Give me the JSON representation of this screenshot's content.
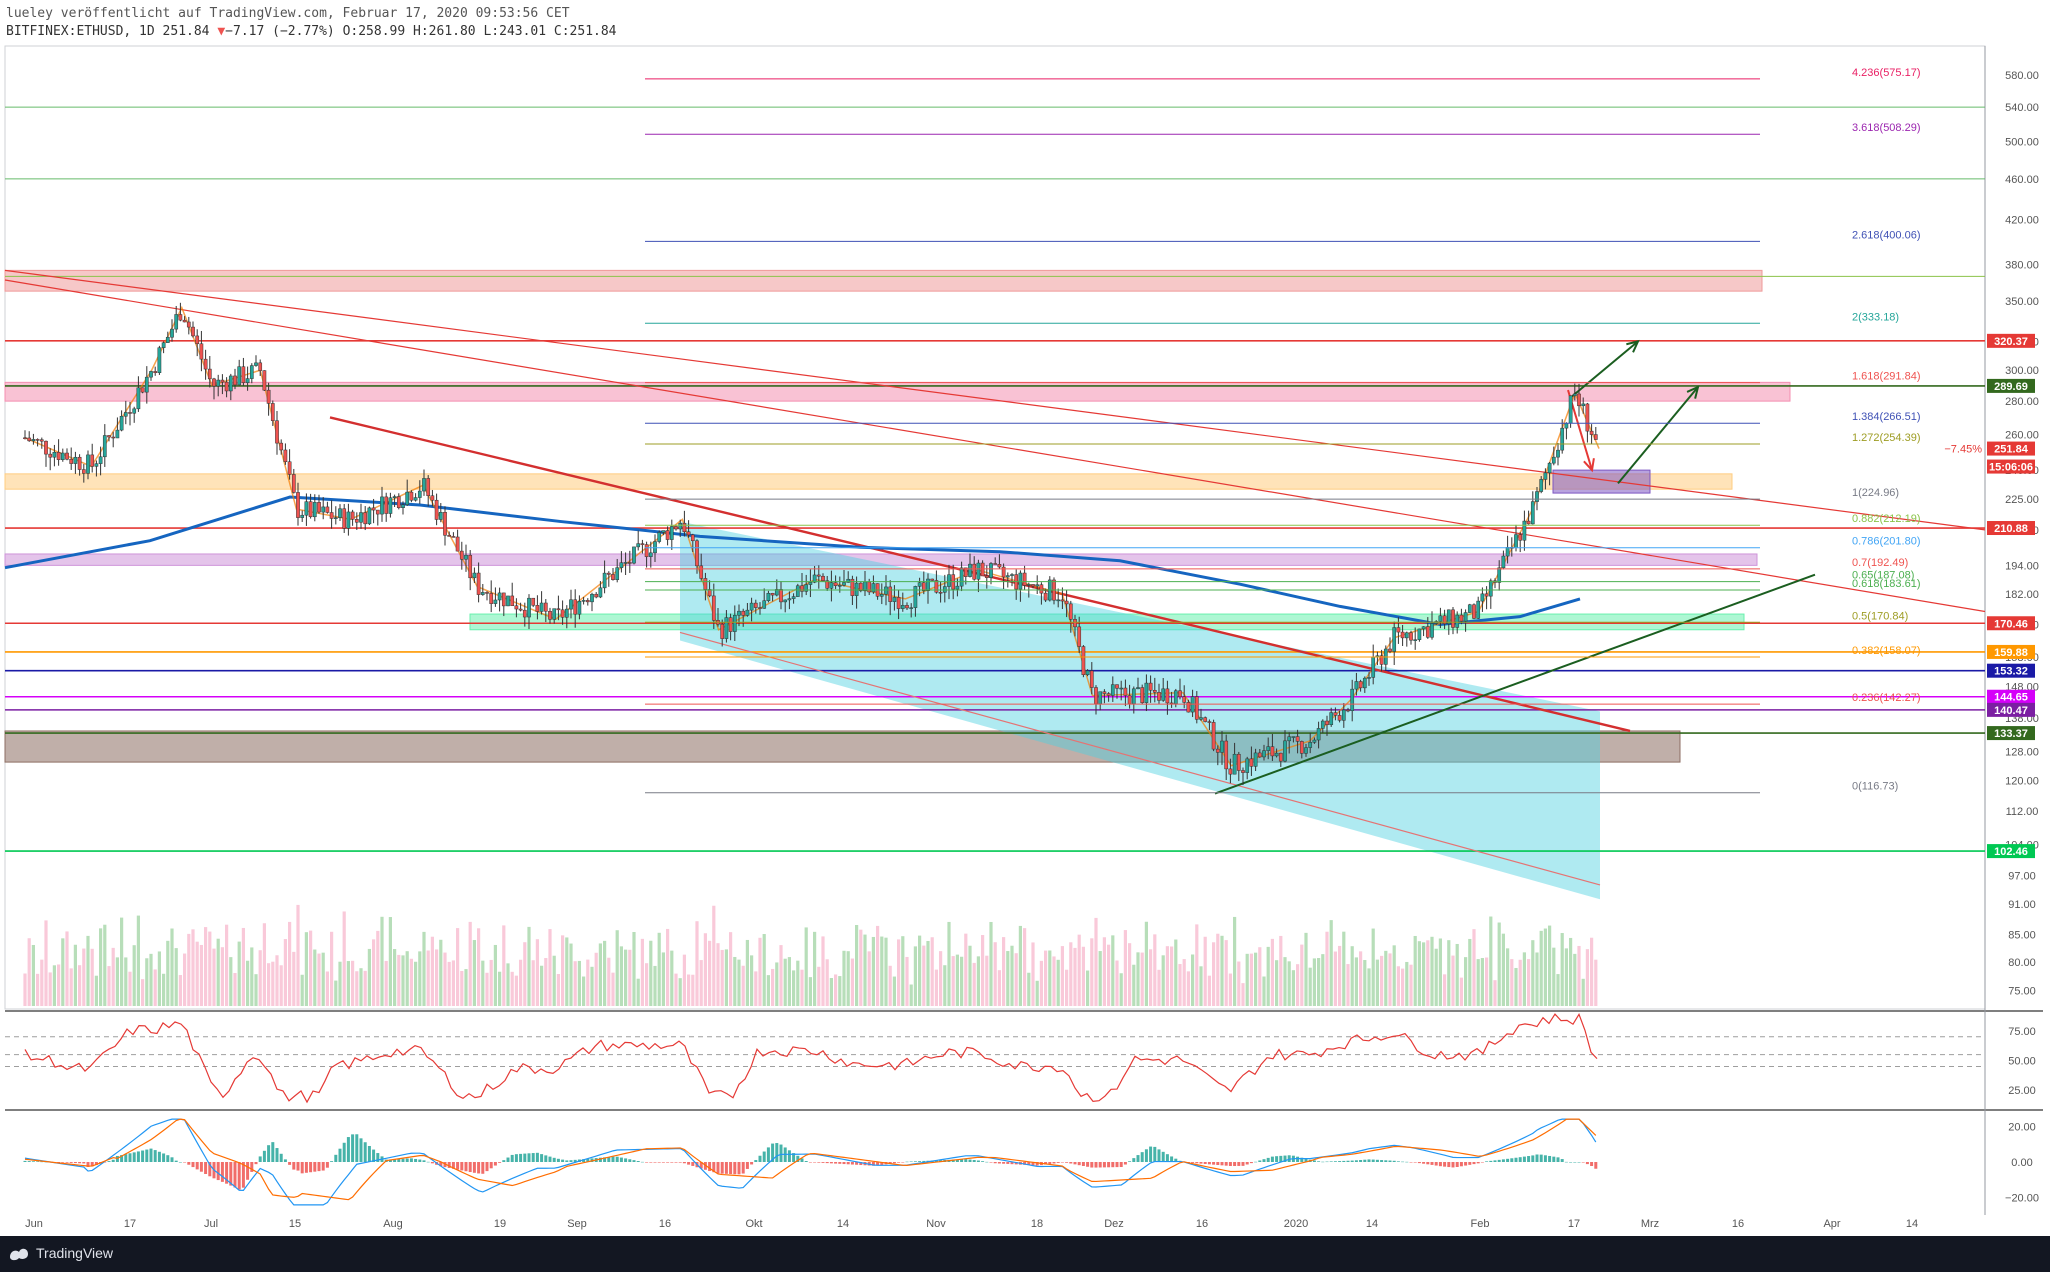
{
  "header": {
    "line1": "lueley veröffentlicht auf TradingView.com, Februar 17, 2020 09:53:56 CET",
    "symbol": "BITFINEX:ETHUSD, 1D",
    "last": "251.84",
    "change_icon": "triangle-down-icon",
    "change": "−7.17 (−2.77%)",
    "ohlc": "O:258.99 H:261.80 L:243.01 C:251.84"
  },
  "footer": {
    "brand": "TradingView"
  },
  "chart_data": {
    "type": "candlestick",
    "symbol": "BITFINEX:ETHUSD",
    "interval": "1D",
    "y_scale": "log",
    "ylim": [
      72,
      600
    ],
    "price_axis_ticks": [
      "580.00",
      "540.00",
      "500.00",
      "460.00",
      "420.00",
      "380.00",
      "350.00",
      "320.00",
      "300.00",
      "280.00",
      "260.00",
      "240.00",
      "225.00",
      "210.00",
      "194.00",
      "182.00",
      "170.00",
      "158.00",
      "148.00",
      "138.00",
      "128.00",
      "120.00",
      "112.00",
      "104.00",
      "97.00",
      "91.00",
      "85.00",
      "80.00",
      "75.00"
    ],
    "x_ticks": [
      "Jun",
      "17",
      "Jul",
      "15",
      "Aug",
      "19",
      "Sep",
      "16",
      "Okt",
      "14",
      "Nov",
      "18",
      "Dez",
      "16",
      "2020",
      "14",
      "Feb",
      "17",
      "Mrz",
      "16",
      "Apr",
      "14"
    ],
    "price_path": [
      {
        "x": "2019-06-01",
        "y": 258
      },
      {
        "x": "2019-06-12",
        "y": 242
      },
      {
        "x": "2019-06-22",
        "y": 300
      },
      {
        "x": "2019-06-27",
        "y": 345
      },
      {
        "x": "2019-07-02",
        "y": 290
      },
      {
        "x": "2019-07-10",
        "y": 300
      },
      {
        "x": "2019-07-16",
        "y": 220
      },
      {
        "x": "2019-07-25",
        "y": 215
      },
      {
        "x": "2019-08-06",
        "y": 232
      },
      {
        "x": "2019-08-15",
        "y": 185
      },
      {
        "x": "2019-08-28",
        "y": 172
      },
      {
        "x": "2019-09-18",
        "y": 215
      },
      {
        "x": "2019-09-24",
        "y": 168
      },
      {
        "x": "2019-10-10",
        "y": 188
      },
      {
        "x": "2019-10-25",
        "y": 180
      },
      {
        "x": "2019-11-06",
        "y": 192
      },
      {
        "x": "2019-11-20",
        "y": 182
      },
      {
        "x": "2019-11-25",
        "y": 145
      },
      {
        "x": "2019-12-10",
        "y": 146
      },
      {
        "x": "2019-12-18",
        "y": 124
      },
      {
        "x": "2019-12-31",
        "y": 131
      },
      {
        "x": "2020-01-07",
        "y": 144
      },
      {
        "x": "2020-01-14",
        "y": 165
      },
      {
        "x": "2020-01-28",
        "y": 175
      },
      {
        "x": "2020-02-06",
        "y": 220
      },
      {
        "x": "2020-02-13",
        "y": 285
      },
      {
        "x": "2020-02-17",
        "y": 251.84
      }
    ],
    "fibonacci": [
      {
        "label": "4.236(575.17)",
        "value": 575.17,
        "color": "#e91e63"
      },
      {
        "label": "3.618(508.29)",
        "value": 508.29,
        "color": "#9c27b0"
      },
      {
        "label": "2.618(400.06)",
        "value": 400.06,
        "color": "#3f51b5"
      },
      {
        "label": "2(333.18)",
        "value": 333.18,
        "color": "#26a69a"
      },
      {
        "label": "1.618(291.84)",
        "value": 291.84,
        "color": "#ef5350"
      },
      {
        "label": "1.384(266.51)",
        "value": 266.51,
        "color": "#3f51b5"
      },
      {
        "label": "1.272(254.39)",
        "value": 254.39,
        "color": "#9e9d24"
      },
      {
        "label": "1(224.96)",
        "value": 224.96,
        "color": "#787b86"
      },
      {
        "label": "0.882(212.19)",
        "value": 212.19,
        "color": "#8bc34a"
      },
      {
        "label": "0.786(201.80)",
        "value": 201.8,
        "color": "#42a5f5"
      },
      {
        "label": "0.7(192.49)",
        "value": 192.49,
        "color": "#ef5350"
      },
      {
        "label": "0.65(187.08)",
        "value": 187.08,
        "color": "#4caf50"
      },
      {
        "label": "0.618(183.61)",
        "value": 183.61,
        "color": "#4caf50"
      },
      {
        "label": "0.5(170.84)",
        "value": 170.84,
        "color": "#9e9d24"
      },
      {
        "label": "0.382(158.07)",
        "value": 158.07,
        "color": "#ff9800"
      },
      {
        "label": "0.236(142.27)",
        "value": 142.27,
        "color": "#ef5350"
      },
      {
        "label": "0(116.73)",
        "value": 116.73,
        "color": "#787b86"
      }
    ],
    "price_labels": [
      {
        "text": "320.37",
        "value": 320.37,
        "color": "#e53935"
      },
      {
        "text": "289.69",
        "value": 289.69,
        "color": "#33691e"
      },
      {
        "text": "251.84",
        "value": 251.84,
        "color": "#e53935"
      },
      {
        "text": "15:06:06",
        "value": 245,
        "color": "#e53935"
      },
      {
        "text": "210.88",
        "value": 210.88,
        "color": "#e53935"
      },
      {
        "text": "170.46",
        "value": 170.46,
        "color": "#e53935"
      },
      {
        "text": "159.88",
        "value": 159.88,
        "color": "#ff9800"
      },
      {
        "text": "153.32",
        "value": 153.32,
        "color": "#1a1aa6"
      },
      {
        "text": "144.65",
        "value": 144.65,
        "color": "#d500f9"
      },
      {
        "text": "140.47",
        "value": 140.47,
        "color": "#7b1fa2"
      },
      {
        "text": "133.37",
        "value": 133.37,
        "color": "#33691e"
      },
      {
        "text": "102.46",
        "value": 102.46,
        "color": "#00c853"
      }
    ],
    "percent_label": "−7.45%",
    "zones": [
      {
        "name": "resistance",
        "low": 358,
        "high": 375,
        "color": "#ef9a9a"
      },
      {
        "name": "magenta",
        "low": 280,
        "high": 292,
        "color": "#f48fb1"
      },
      {
        "name": "orange",
        "low": 230,
        "high": 238,
        "color": "#ffcc80"
      },
      {
        "name": "target",
        "low": 228,
        "high": 240,
        "color": "#7e57c2"
      },
      {
        "name": "pink",
        "low": 194,
        "high": 199,
        "color": "#ce93d8"
      },
      {
        "name": "green",
        "low": 168,
        "high": 174,
        "color": "#69f0ae"
      },
      {
        "name": "support",
        "low": 125,
        "high": 134,
        "color": "#8d6e63"
      }
    ],
    "volume_axis": false,
    "rsi": {
      "ticks": [
        "75.00",
        "50.00",
        "25.00"
      ],
      "levels": [
        70,
        55,
        45
      ]
    },
    "macd": {
      "ticks": [
        "20.00",
        "0.00",
        "−20.00"
      ]
    }
  }
}
